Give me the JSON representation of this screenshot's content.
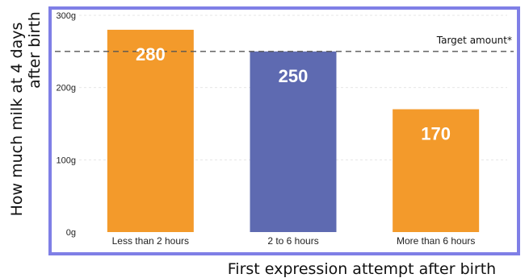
{
  "chart_data": {
    "type": "bar",
    "title": "",
    "xlabel": "First expression attempt after birth",
    "ylabel": "How much milk at 4 days after birth",
    "ylabel_lines": [
      "How much milk at 4 days",
      "after birth"
    ],
    "categories": [
      "Less than 2 hours",
      "2 to 6 hours",
      "More than 6 hours"
    ],
    "values": [
      280,
      250,
      170
    ],
    "value_labels": [
      "280",
      "250",
      "170"
    ],
    "ylim": [
      0,
      300
    ],
    "yticks": [
      0,
      100,
      200,
      300
    ],
    "ytick_labels": [
      "0g",
      "100g",
      "200g",
      "300g"
    ],
    "grid": true,
    "reference_line": {
      "value": 250,
      "label": "Target amount*",
      "style": "dashed"
    },
    "colors": {
      "bars": [
        "#f39a2b",
        "#5e6ab1",
        "#f39a2b"
      ],
      "frame": "#7f7fe6",
      "grid": "#e6e6e6",
      "reference": "#555555"
    }
  }
}
